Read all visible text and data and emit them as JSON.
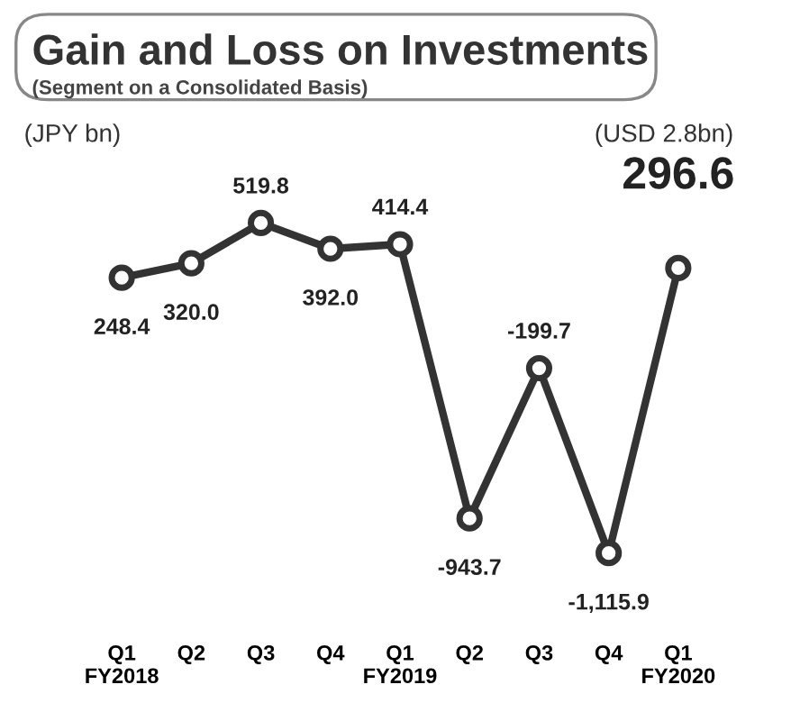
{
  "chart_data": {
    "type": "line",
    "title": "Gain and Loss on Investments",
    "subtitle": "(Segment on a Consolidated Basis)",
    "categories": [
      "Q1\nFY2018",
      "Q2",
      "Q3",
      "Q4",
      "Q1\nFY2019",
      "Q2",
      "Q3",
      "Q4",
      "Q1\nFY2020"
    ],
    "series": [
      {
        "color": "#333333",
        "values": [
          248.4,
          320.0,
          519.8,
          392.0,
          414.4,
          -943.7,
          -199.7,
          -1115.9,
          296.6
        ],
        "value_labels": [
          "248.4",
          "320.0",
          "519.8",
          "392.0",
          "414.4",
          "-943.7",
          "-199.7",
          "-1,115.9",
          "296.6"
        ]
      }
    ],
    "annotations": [
      "(JPY bn)",
      "(USD 2.8bn)"
    ],
    "marker": "circle",
    "line_style": "solid",
    "grid": false,
    "legend": false,
    "tick_labels": "x"
  }
}
